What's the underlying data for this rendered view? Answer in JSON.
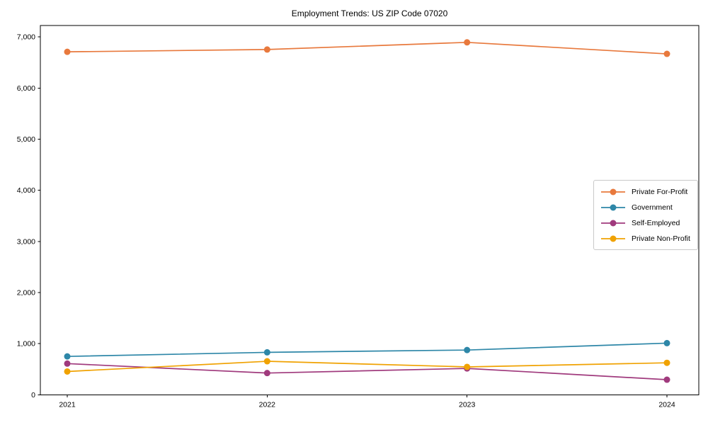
{
  "chart_data": {
    "type": "line",
    "title": "Employment Trends: US ZIP Code 07020",
    "x": [
      "2021",
      "2022",
      "2023",
      "2024"
    ],
    "series": [
      {
        "name": "Private For-Profit",
        "color": "#E8793D",
        "values": [
          6710,
          6755,
          6895,
          6670
        ]
      },
      {
        "name": "Government",
        "color": "#2E87A8",
        "values": [
          750,
          830,
          875,
          1010
        ]
      },
      {
        "name": "Self-Employed",
        "color": "#A03A7D",
        "values": [
          610,
          425,
          515,
          295
        ]
      },
      {
        "name": "Private Non-Profit",
        "color": "#F0A202",
        "values": [
          455,
          655,
          545,
          625
        ]
      }
    ],
    "ylim": [
      0,
      7225
    ],
    "yticks": [
      0,
      1000,
      2000,
      3000,
      4000,
      5000,
      6000,
      7000
    ],
    "ytick_labels": [
      "0",
      "1,000",
      "2,000",
      "3,000",
      "4,000",
      "5,000",
      "6,000",
      "7,000"
    ],
    "xlabel": "",
    "ylabel": "",
    "legend_position": "right",
    "grid": false,
    "frame_color": "#000000",
    "background_color": "#ffffff"
  }
}
